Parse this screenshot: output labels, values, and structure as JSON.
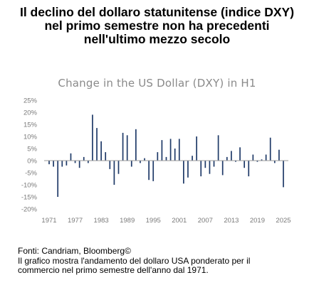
{
  "headline": {
    "line1": "Il declino del dollaro statunitense (indice DXY)",
    "line2": "nel primo semestre non ha precedenti",
    "line3": "nell'ultimo mezzo secolo"
  },
  "footer": {
    "line1": "Fonti: Candriam, Bloomberg©",
    "line2": "Il grafico mostra l'andamento del dollaro USA ponderato per il",
    "line3": "commercio nel primo semestre dell'anno dal 1971."
  },
  "colors": {
    "bar": "#1f3a68",
    "axis": "#9a9a9a",
    "tick_label": "#7a7a7a",
    "title": "#8a8a8a"
  },
  "chart_data": {
    "type": "bar",
    "title": "Change in the US Dollar (DXY) in H1",
    "xlabel": "",
    "ylabel": "",
    "ylim": [
      -20,
      25
    ],
    "y_ticks": [
      25,
      20,
      15,
      10,
      5,
      0,
      -5,
      -10,
      -15,
      -20
    ],
    "y_tick_labels": [
      "25%",
      "20%",
      "15%",
      "10%",
      "5%",
      "0%",
      "-5%",
      "-10%",
      "-15%",
      "-20%"
    ],
    "x_tick_labels": [
      "1971",
      "1977",
      "1983",
      "1989",
      "1995",
      "2001",
      "2007",
      "2013",
      "2019",
      "2025"
    ],
    "grid": false,
    "categories": [
      1971,
      1972,
      1973,
      1974,
      1975,
      1976,
      1977,
      1978,
      1979,
      1980,
      1981,
      1982,
      1983,
      1984,
      1985,
      1986,
      1987,
      1988,
      1989,
      1990,
      1991,
      1992,
      1993,
      1994,
      1995,
      1996,
      1997,
      1998,
      1999,
      2000,
      2001,
      2002,
      2003,
      2004,
      2005,
      2006,
      2007,
      2008,
      2009,
      2010,
      2011,
      2012,
      2013,
      2014,
      2015,
      2016,
      2017,
      2018,
      2019,
      2020,
      2021,
      2022,
      2023,
      2024,
      2025
    ],
    "values": [
      -1.5,
      -2.5,
      -15,
      -2.5,
      -2,
      3,
      -1,
      -3,
      1.5,
      -1,
      19,
      13.5,
      8,
      3.5,
      -3.5,
      -10,
      -5.5,
      11.5,
      10.5,
      -2.5,
      13,
      -1,
      1,
      -8,
      -8.5,
      3.5,
      8.5,
      1.5,
      9,
      5,
      9,
      -9.5,
      -7,
      2,
      10,
      -6.5,
      -3,
      -5.5,
      -2.5,
      10.5,
      -6,
      1.5,
      4,
      -0.5,
      5.5,
      -3,
      -6.5,
      2.5,
      -0.5,
      0.5,
      2.5,
      9.5,
      -1,
      4.5,
      -11
    ]
  }
}
